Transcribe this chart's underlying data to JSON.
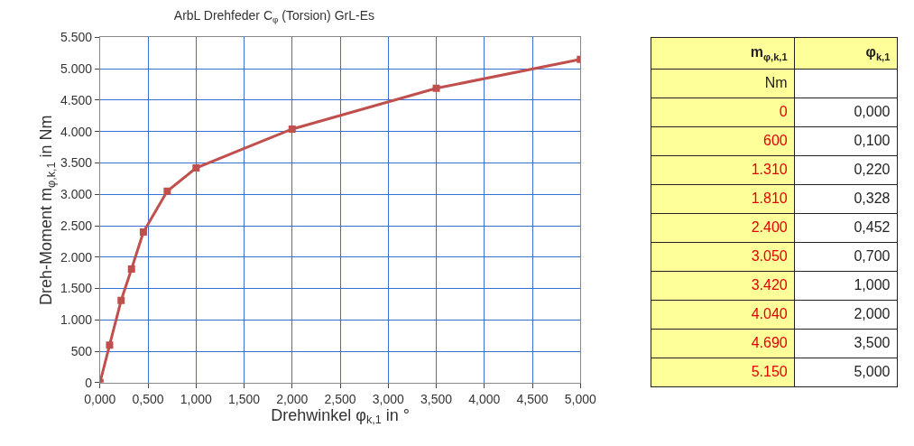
{
  "chart_data": [
    {
      "type": "line",
      "title": "ArbL Drehfeder C$_{φ}$ (Torsion) GrL-Es",
      "xlabel": "Drehwinkel φ$_{k,1}$ in °",
      "ylabel": "Dreh-Moment m$_{φ,k,1}$ in Nm",
      "x": [
        0,
        0.1,
        0.22,
        0.328,
        0.452,
        0.7,
        1,
        2,
        3.5,
        5
      ],
      "series": [
        {
          "color": "#c0504d",
          "values": [
            0,
            600,
            1310,
            1810,
            2400,
            3050,
            3420,
            4040,
            4690,
            5150
          ]
        }
      ],
      "xlim": [
        0,
        5
      ],
      "xticks": [
        {
          "value": 0,
          "label": "0,000"
        },
        {
          "value": 0.5,
          "label": "0,500"
        },
        {
          "value": 1,
          "label": "1,000"
        },
        {
          "value": 1.5,
          "label": "1,500"
        },
        {
          "value": 2,
          "label": "2,000"
        },
        {
          "value": 2.5,
          "label": "2,500"
        },
        {
          "value": 3,
          "label": "3,000"
        },
        {
          "value": 3.5,
          "label": "3,500"
        },
        {
          "value": 4,
          "label": "4,000"
        },
        {
          "value": 4.5,
          "label": "4,500"
        },
        {
          "value": 5,
          "label": "5,000"
        }
      ],
      "ylim": [
        0,
        5500
      ],
      "yticks": [
        0,
        500,
        {
          "value": 1000,
          "label": "1.000"
        },
        {
          "value": 1500,
          "label": "1.500"
        },
        {
          "value": 2000,
          "label": "2.000"
        },
        {
          "value": 2500,
          "label": "2.500"
        },
        {
          "value": 3000,
          "label": "3.000"
        },
        {
          "value": 3500,
          "label": "3.500"
        },
        {
          "value": 4000,
          "label": "4.000"
        },
        {
          "value": 4500,
          "label": "4.500"
        },
        {
          "value": 5000,
          "label": "5.000"
        },
        {
          "value": 5500,
          "label": "5.500"
        }
      ],
      "grid": true,
      "marker": "square",
      "line_style": "solid"
    },
    {
      "type": "other",
      "annotations": [
        "m$_{φ,k,1}$",
        "φ$_{k,1}$",
        "Nm",
        "0",
        "0,000",
        "600",
        "0,100",
        "1.310",
        "0,220",
        "1.810",
        "0,328",
        "2.400",
        "0,452",
        "3.050",
        "0,700",
        "3.420",
        "1,000",
        "4.040",
        "2,000",
        "4.690",
        "3,500",
        "5.150",
        "5,000"
      ]
    }
  ]
}
